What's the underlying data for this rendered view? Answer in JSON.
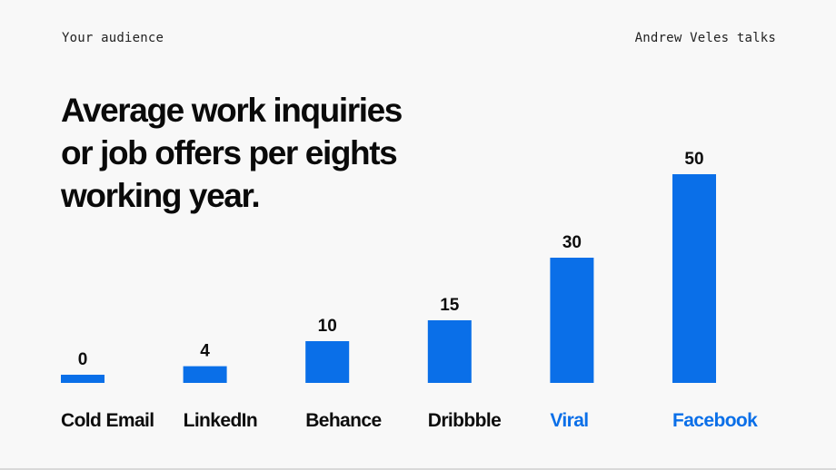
{
  "header": {
    "left": "Your audience",
    "right": "Andrew Veles talks"
  },
  "colors": {
    "bar": "#0a6fe8",
    "highlight_label": "#0a6fe8",
    "label": "#0d0d0d"
  },
  "chart_data": {
    "type": "bar",
    "title": "Average work inquiries or job offers per eights working year.",
    "title_lines": [
      "Average work inquiries",
      "or job offers per eights",
      "working year."
    ],
    "categories": [
      "Cold Email",
      "LinkedIn",
      "Behance",
      "Dribbble",
      "Viral",
      "Facebook"
    ],
    "values": [
      0,
      4,
      10,
      15,
      30,
      50
    ],
    "data_labels": [
      "0",
      "4",
      "10",
      "15",
      "30",
      "50"
    ],
    "highlighted": [
      "Viral",
      "Facebook"
    ],
    "xlabel": "",
    "ylabel": "",
    "grid": false,
    "legend": "none"
  }
}
